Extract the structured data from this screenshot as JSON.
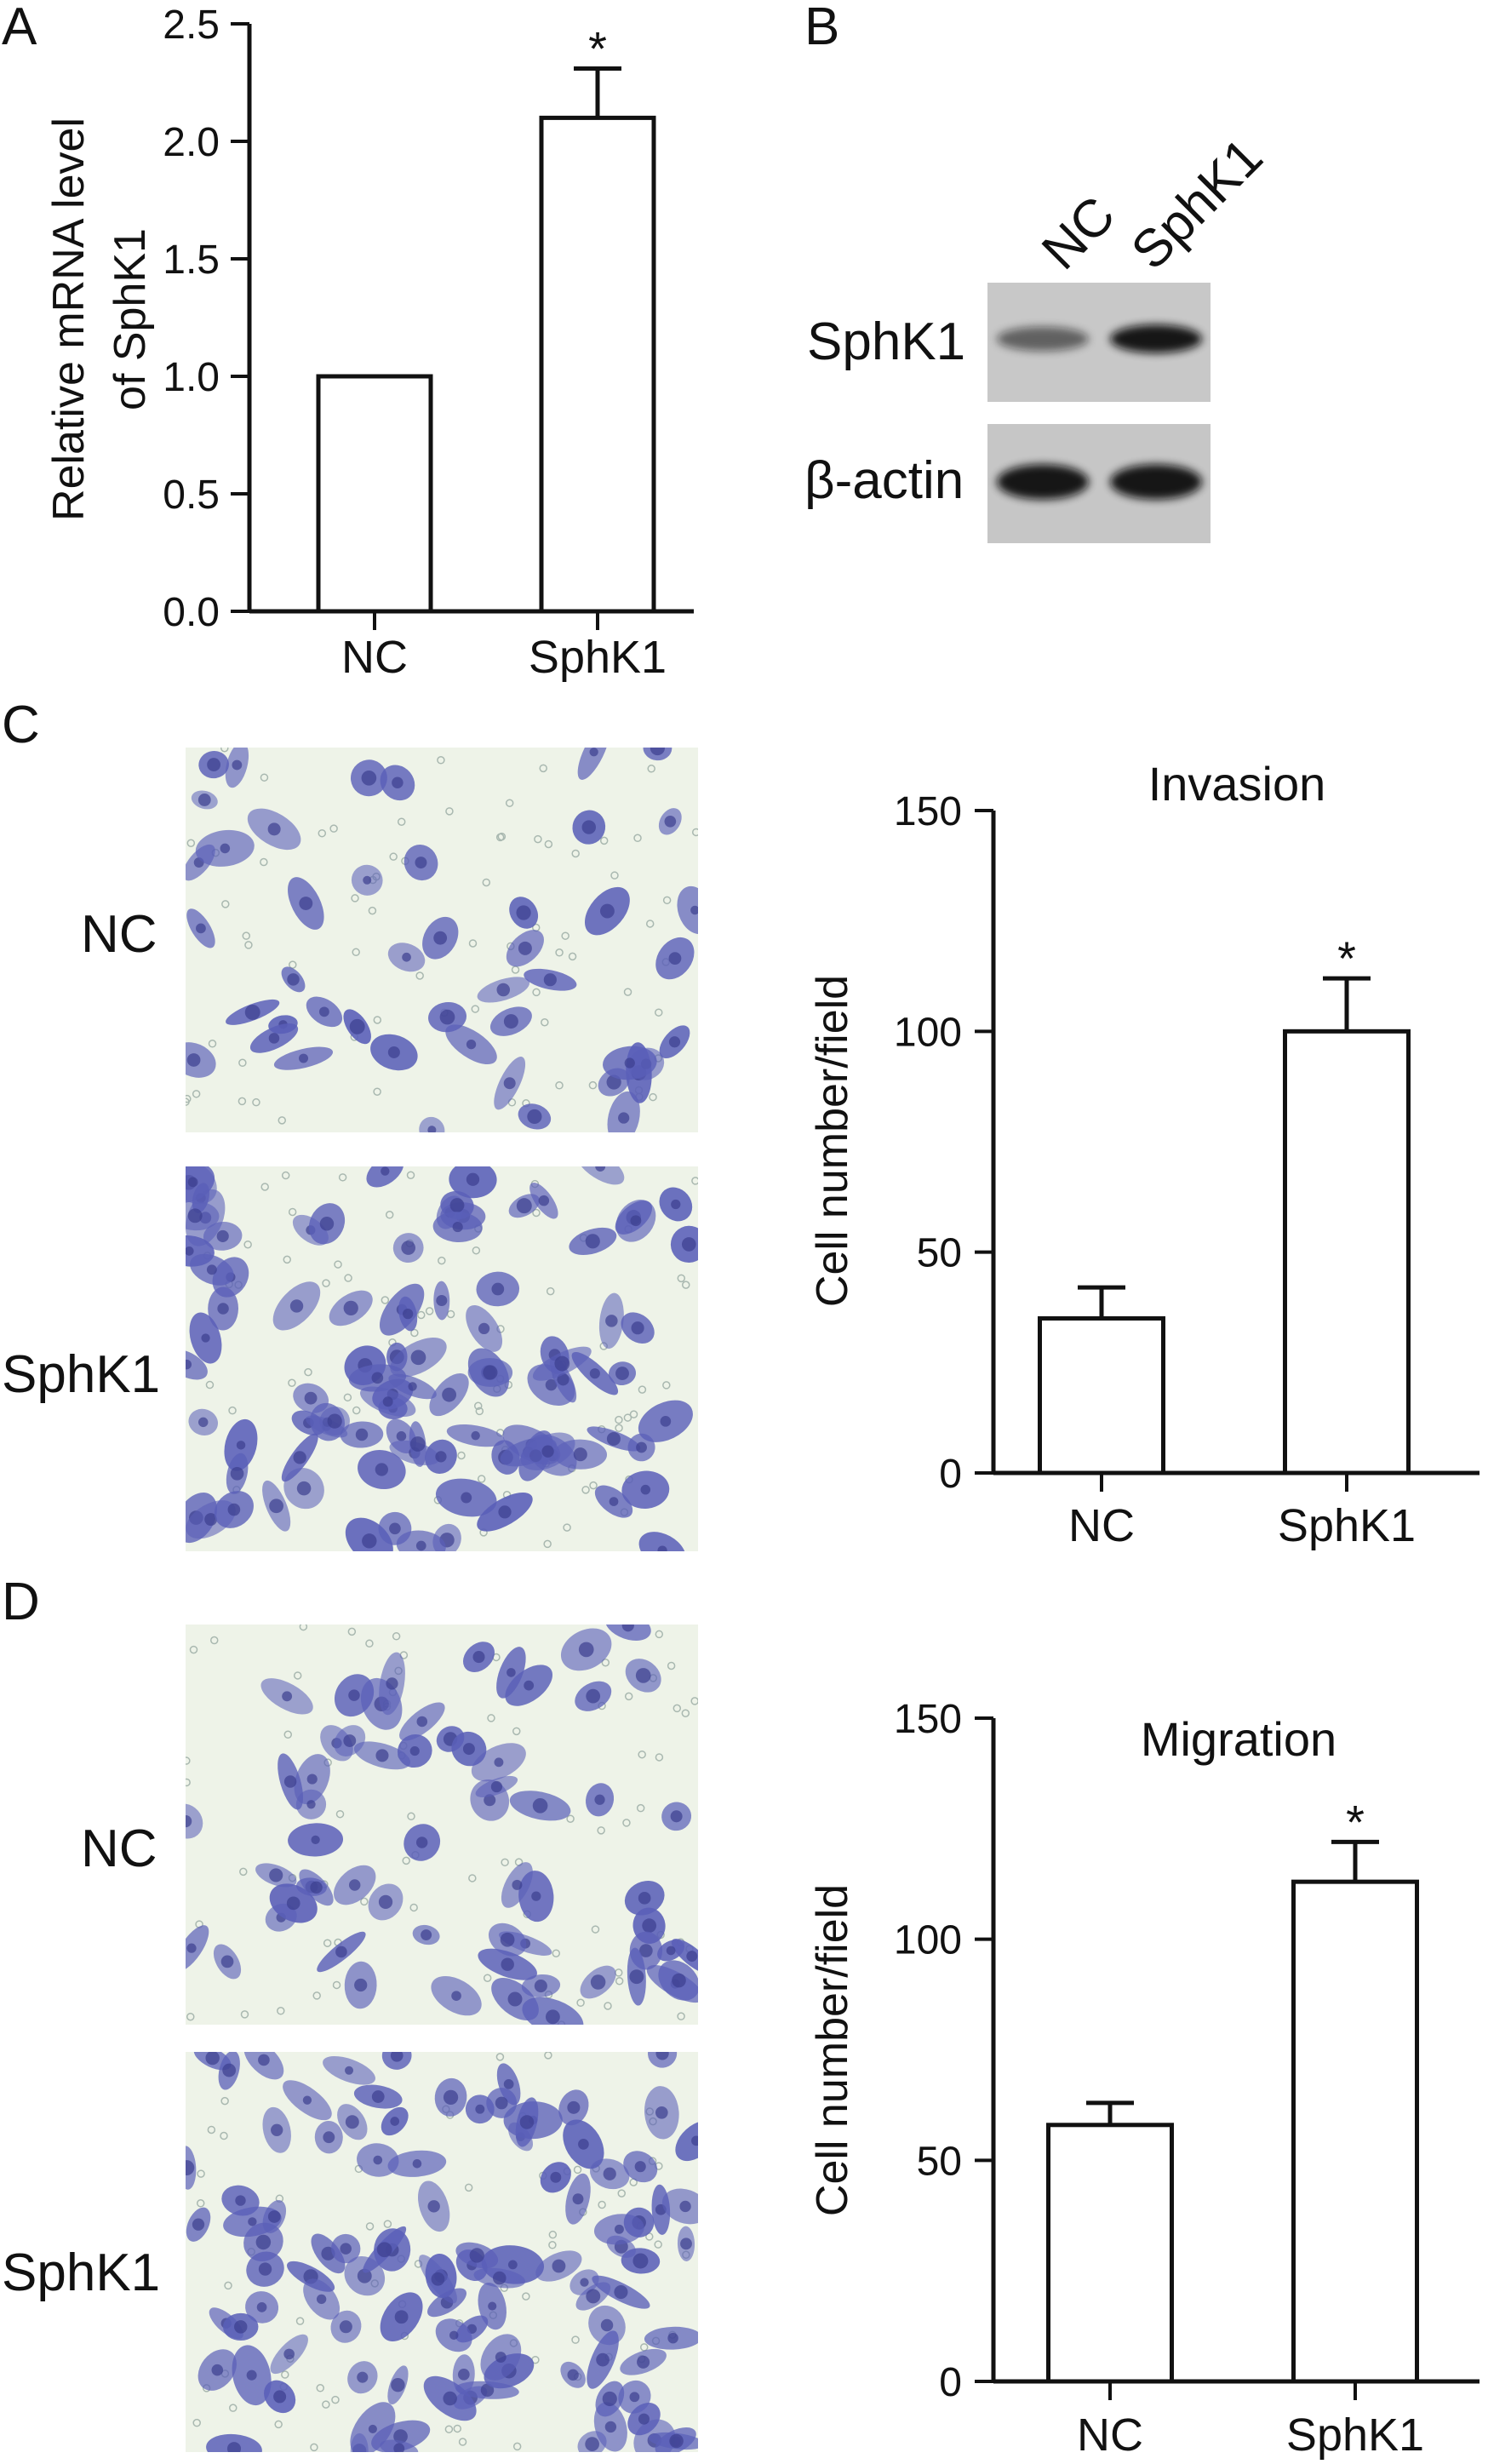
{
  "figure": {
    "panels": {
      "a": "A",
      "b": "B",
      "c": "C",
      "d": "D"
    },
    "western_blot": {
      "lane_labels": [
        "NC",
        "SphK1"
      ],
      "row_labels": [
        "SphK1",
        "β-actin"
      ],
      "band_intensity": {
        "SphK1": [
          0.55,
          0.95
        ],
        "β-actin": [
          0.95,
          0.95
        ]
      },
      "band_color": "#111111"
    },
    "micrographs": {
      "c_rows": [
        "NC",
        "SphK1"
      ],
      "d_rows": [
        "NC",
        "SphK1"
      ],
      "stain_color": "#5a5fb8",
      "background_color": "#eef3e8"
    },
    "bar_fill": "#ffffff",
    "bar_stroke": "#111111"
  },
  "chart_data": [
    {
      "panel": "A",
      "type": "bar",
      "title": "",
      "xlabel": "",
      "ylabel": "Relative mRNA level of SphK1",
      "ylabel_lines": [
        "Relative mRNA level",
        "of SphK1"
      ],
      "categories": [
        "NC",
        "SphK1"
      ],
      "values": [
        1.0,
        2.1
      ],
      "errors": [
        0,
        0.21
      ],
      "significance": [
        "",
        "*"
      ],
      "ylim": [
        0,
        2.5
      ],
      "yticks": [
        0.0,
        0.5,
        1.0,
        1.5,
        2.0,
        2.5
      ],
      "ytick_labels": [
        "0.0",
        "0.5",
        "1.0",
        "1.5",
        "2.0",
        "2.5"
      ],
      "grid": false
    },
    {
      "panel": "C",
      "type": "bar",
      "title": "Invasion",
      "xlabel": "",
      "ylabel": "Cell number/field",
      "categories": [
        "NC",
        "SphK1"
      ],
      "values": [
        35,
        100
      ],
      "errors": [
        7,
        12
      ],
      "significance": [
        "",
        "*"
      ],
      "ylim": [
        0,
        150
      ],
      "yticks": [
        0,
        50,
        100,
        150
      ],
      "ytick_labels": [
        "0",
        "50",
        "100",
        "150"
      ],
      "grid": false
    },
    {
      "panel": "D",
      "type": "bar",
      "title": "Migration",
      "xlabel": "",
      "ylabel": "Cell number/field",
      "categories": [
        "NC",
        "SphK1"
      ],
      "values": [
        58,
        113
      ],
      "errors": [
        5,
        9
      ],
      "significance": [
        "",
        "*"
      ],
      "ylim": [
        0,
        150
      ],
      "yticks": [
        0,
        50,
        100,
        150
      ],
      "ytick_labels": [
        "0",
        "50",
        "100",
        "150"
      ],
      "grid": false
    }
  ]
}
